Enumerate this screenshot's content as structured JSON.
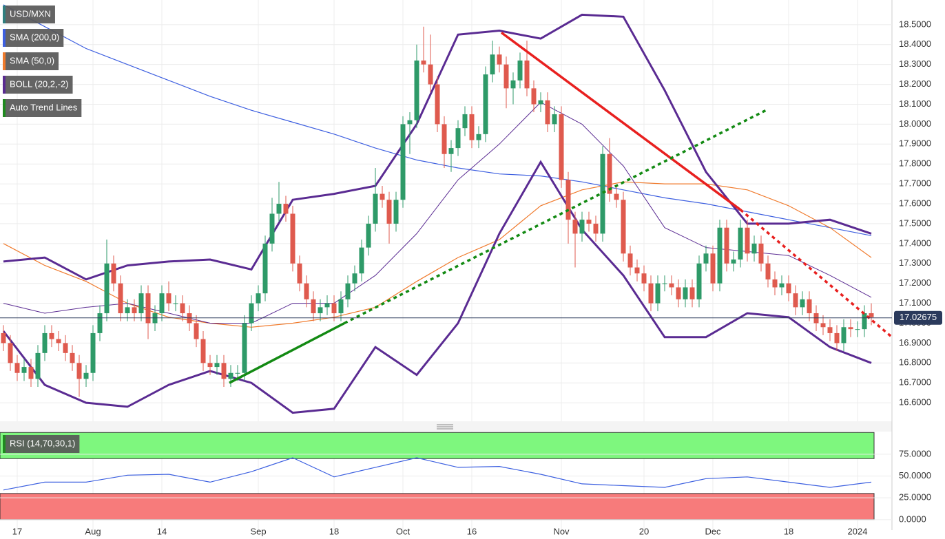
{
  "chart_data": [
    {
      "type": "candlestick",
      "title": "USD/MXN",
      "title_color": "#2f7f7f",
      "up_color": "#2e9a68",
      "down_color": "#df5a4e",
      "xlim": [
        -0.5,
        129
      ],
      "ylim": [
        16.507,
        18.624
      ],
      "xticks": [
        {
          "value": 2,
          "label": "17"
        },
        {
          "value": 13,
          "label": "Aug"
        },
        {
          "value": 23,
          "label": "14"
        },
        {
          "value": 37,
          "label": "Sep"
        },
        {
          "value": 48,
          "label": "18"
        },
        {
          "value": 58,
          "label": "Oct"
        },
        {
          "value": 68,
          "label": "16"
        },
        {
          "value": 81,
          "label": "Nov"
        },
        {
          "value": 93,
          "label": "20"
        },
        {
          "value": 103,
          "label": "Dec"
        },
        {
          "value": 114,
          "label": "18"
        },
        {
          "value": 124,
          "label": "2024"
        }
      ],
      "yticks": [
        {
          "value": 16.6,
          "label": "16.6000"
        },
        {
          "value": 16.7,
          "label": "16.7000"
        },
        {
          "value": 16.8,
          "label": "16.8000"
        },
        {
          "value": 16.9,
          "label": "16.9000"
        },
        {
          "value": 17.0,
          "label": "17.0000"
        },
        {
          "value": 17.1,
          "label": "17.1000"
        },
        {
          "value": 17.2,
          "label": "17.2000"
        },
        {
          "value": 17.3,
          "label": "17.3000"
        },
        {
          "value": 17.4,
          "label": "17.4000"
        },
        {
          "value": 17.5,
          "label": "17.5000"
        },
        {
          "value": 17.6,
          "label": "17.6000"
        },
        {
          "value": 17.7,
          "label": "17.7000"
        },
        {
          "value": 17.8,
          "label": "17.8000"
        },
        {
          "value": 17.9,
          "label": "17.9000"
        },
        {
          "value": 18.0,
          "label": "18.0000"
        },
        {
          "value": 18.1,
          "label": "18.1000"
        },
        {
          "value": 18.2,
          "label": "18.2000"
        },
        {
          "value": 18.3,
          "label": "18.3000"
        },
        {
          "value": 18.4,
          "label": "18.4000"
        },
        {
          "value": 18.5,
          "label": "18.5000"
        }
      ],
      "grid": true,
      "last_price": 17.02675,
      "x": [
        0,
        1,
        2,
        3,
        4,
        5,
        6,
        7,
        8,
        9,
        10,
        11,
        12,
        13,
        14,
        15,
        16,
        17,
        18,
        19,
        20,
        21,
        22,
        23,
        24,
        25,
        26,
        27,
        28,
        29,
        30,
        31,
        32,
        33,
        34,
        35,
        36,
        37,
        38,
        39,
        40,
        41,
        42,
        43,
        44,
        45,
        46,
        47,
        48,
        49,
        50,
        51,
        52,
        53,
        54,
        55,
        56,
        57,
        58,
        59,
        60,
        61,
        62,
        63,
        64,
        65,
        66,
        67,
        68,
        69,
        70,
        71,
        72,
        73,
        74,
        75,
        76,
        77,
        78,
        79,
        80,
        81,
        82,
        83,
        84,
        85,
        86,
        87,
        88,
        89,
        90,
        91,
        92,
        93,
        94,
        95,
        96,
        97,
        98,
        99,
        100,
        101,
        102,
        103,
        104,
        105,
        106,
        107,
        108,
        109,
        110,
        111,
        112,
        113,
        114,
        115,
        116,
        117,
        118,
        119,
        120,
        121,
        122,
        123,
        124,
        125,
        126
      ],
      "open": [
        16.95,
        16.9,
        16.8,
        16.75,
        16.78,
        16.72,
        16.85,
        16.95,
        16.92,
        16.9,
        16.85,
        16.8,
        16.72,
        16.75,
        16.95,
        17.05,
        17.3,
        17.2,
        17.05,
        17.08,
        17.05,
        17.15,
        17.0,
        17.05,
        17.15,
        17.1,
        17.1,
        17.05,
        17.0,
        16.92,
        16.8,
        16.78,
        16.8,
        16.72,
        16.75,
        16.75,
        17.0,
        17.1,
        17.15,
        17.4,
        17.55,
        17.6,
        17.55,
        17.3,
        17.2,
        17.12,
        17.05,
        17.08,
        17.1,
        17.05,
        17.12,
        17.2,
        17.25,
        17.38,
        17.5,
        17.65,
        17.62,
        17.5,
        17.62,
        18.0,
        18.02,
        18.32,
        18.3,
        18.2,
        18.0,
        17.85,
        17.88,
        17.98,
        18.05,
        17.92,
        17.95,
        18.25,
        18.35,
        18.3,
        18.18,
        18.22,
        18.32,
        18.18,
        18.1,
        18.12,
        18.0,
        18.05,
        17.72,
        17.52,
        17.45,
        17.52,
        17.5,
        17.45,
        17.85,
        17.65,
        17.62,
        17.35,
        17.28,
        17.25,
        17.2,
        17.1,
        17.2,
        17.2,
        17.18,
        17.12,
        17.18,
        17.12,
        17.3,
        17.35,
        17.2,
        17.48,
        17.3,
        17.32,
        17.48,
        17.35,
        17.4,
        17.3,
        17.22,
        17.18,
        17.2,
        17.15,
        17.08,
        17.12,
        17.05,
        17.0,
        16.98,
        16.95,
        16.9,
        16.98,
        16.97,
        16.97,
        17.05
      ],
      "high": [
        16.99,
        16.94,
        16.84,
        16.82,
        16.82,
        16.89,
        16.99,
        16.99,
        16.96,
        16.94,
        16.89,
        16.84,
        16.79,
        16.99,
        17.09,
        17.42,
        17.34,
        17.24,
        17.12,
        17.12,
        17.19,
        17.19,
        17.09,
        17.19,
        17.21,
        17.14,
        17.14,
        17.09,
        17.04,
        16.96,
        16.84,
        16.84,
        16.84,
        16.79,
        16.79,
        17.04,
        17.14,
        17.19,
        17.44,
        17.63,
        17.71,
        17.64,
        17.59,
        17.34,
        17.24,
        17.16,
        17.12,
        17.14,
        17.14,
        17.16,
        17.24,
        17.29,
        17.42,
        17.54,
        17.78,
        17.69,
        17.66,
        17.66,
        18.04,
        18.06,
        18.4,
        18.49,
        18.45,
        18.24,
        18.04,
        17.92,
        18.02,
        18.09,
        18.09,
        17.99,
        18.29,
        18.42,
        18.39,
        18.34,
        18.26,
        18.36,
        18.42,
        18.22,
        18.16,
        18.16,
        18.09,
        18.09,
        17.76,
        17.56,
        17.56,
        17.56,
        17.54,
        17.89,
        17.93,
        17.69,
        17.66,
        17.39,
        17.32,
        17.29,
        17.24,
        17.24,
        17.24,
        17.24,
        17.22,
        17.22,
        17.22,
        17.34,
        17.39,
        17.39,
        17.52,
        17.52,
        17.36,
        17.52,
        17.52,
        17.44,
        17.44,
        17.34,
        17.26,
        17.24,
        17.24,
        17.19,
        17.16,
        17.16,
        17.09,
        17.04,
        17.02,
        16.99,
        17.02,
        17.02,
        17.01,
        17.09,
        17.1
      ],
      "low": [
        16.86,
        16.76,
        16.71,
        16.71,
        16.68,
        16.68,
        16.81,
        16.88,
        16.86,
        16.81,
        16.76,
        16.63,
        16.68,
        16.71,
        16.91,
        17.01,
        17.16,
        17.01,
        17.01,
        17.01,
        17.01,
        16.92,
        16.96,
        17.01,
        17.06,
        17.06,
        17.01,
        16.96,
        16.88,
        16.76,
        16.74,
        16.74,
        16.68,
        16.68,
        16.71,
        16.71,
        16.96,
        17.06,
        17.11,
        17.36,
        17.51,
        17.51,
        17.26,
        17.16,
        17.08,
        17.01,
        17.01,
        17.04,
        17.01,
        17.01,
        17.08,
        17.16,
        17.21,
        17.34,
        17.46,
        17.58,
        17.4,
        17.46,
        17.58,
        17.85,
        17.98,
        18.26,
        18.16,
        17.96,
        17.78,
        17.76,
        17.84,
        17.94,
        17.88,
        17.88,
        17.91,
        18.21,
        18.26,
        18.08,
        18.1,
        18.18,
        18.14,
        18.06,
        18.06,
        17.96,
        17.96,
        17.68,
        17.4,
        17.28,
        17.41,
        17.46,
        17.41,
        17.41,
        17.61,
        17.58,
        17.31,
        17.24,
        17.21,
        17.16,
        17.06,
        17.06,
        17.16,
        17.14,
        17.08,
        17.08,
        17.08,
        17.08,
        17.26,
        17.16,
        17.16,
        17.26,
        17.26,
        17.28,
        17.31,
        17.31,
        17.26,
        17.18,
        17.14,
        17.14,
        17.11,
        17.04,
        17.04,
        17.01,
        16.96,
        16.94,
        16.91,
        16.86,
        16.86,
        16.93,
        16.93,
        16.93,
        16.99
      ],
      "close": [
        16.9,
        16.8,
        16.75,
        16.78,
        16.72,
        16.85,
        16.95,
        16.92,
        16.9,
        16.85,
        16.8,
        16.72,
        16.75,
        16.95,
        17.05,
        17.3,
        17.2,
        17.05,
        17.08,
        17.05,
        17.15,
        17.0,
        17.05,
        17.15,
        17.1,
        17.1,
        17.05,
        17.0,
        16.92,
        16.8,
        16.78,
        16.8,
        16.72,
        16.75,
        16.75,
        17.0,
        17.1,
        17.15,
        17.4,
        17.55,
        17.6,
        17.55,
        17.3,
        17.2,
        17.12,
        17.05,
        17.08,
        17.1,
        17.05,
        17.12,
        17.2,
        17.25,
        17.38,
        17.5,
        17.65,
        17.62,
        17.5,
        17.62,
        18.0,
        18.02,
        18.32,
        18.3,
        18.2,
        18.0,
        17.85,
        17.88,
        17.98,
        18.05,
        17.92,
        17.95,
        18.25,
        18.35,
        18.3,
        18.18,
        18.22,
        18.32,
        18.18,
        18.1,
        18.12,
        18.0,
        18.05,
        17.72,
        17.52,
        17.45,
        17.52,
        17.5,
        17.45,
        17.85,
        17.65,
        17.62,
        17.35,
        17.28,
        17.25,
        17.2,
        17.1,
        17.2,
        17.2,
        17.18,
        17.12,
        17.18,
        17.12,
        17.3,
        17.35,
        17.2,
        17.48,
        17.3,
        17.32,
        17.48,
        17.35,
        17.4,
        17.3,
        17.22,
        17.18,
        17.2,
        17.15,
        17.08,
        17.12,
        17.05,
        17.0,
        16.98,
        16.95,
        16.9,
        16.98,
        16.97,
        16.97,
        17.05,
        17.03
      ],
      "line_x": [
        0,
        6,
        12,
        18,
        24,
        30,
        36,
        42,
        48,
        54,
        60,
        66,
        72,
        78,
        84,
        90,
        96,
        102,
        108,
        114,
        120,
        126
      ],
      "sma200": {
        "name": "SMA (200,0)",
        "color": "#3d5fe0",
        "values": [
          18.6,
          18.49,
          18.38,
          18.3,
          18.22,
          18.14,
          18.07,
          18.01,
          17.95,
          17.88,
          17.82,
          17.78,
          17.75,
          17.74,
          17.71,
          17.67,
          17.63,
          17.6,
          17.56,
          17.52,
          17.48,
          17.44
        ]
      },
      "sma50": {
        "name": "SMA (50,0)",
        "color": "#f07a2c",
        "values": [
          17.4,
          17.29,
          17.21,
          17.1,
          17.03,
          17.0,
          16.98,
          17.0,
          17.03,
          17.08,
          17.21,
          17.33,
          17.42,
          17.59,
          17.67,
          17.71,
          17.7,
          17.7,
          17.67,
          17.59,
          17.48,
          17.33
        ]
      },
      "boll": {
        "name": "BOLL (20,2,-2)",
        "color": "#5a2b92",
        "upper": [
          17.31,
          17.33,
          17.22,
          17.29,
          17.31,
          17.32,
          17.27,
          17.62,
          17.65,
          17.69,
          18.0,
          18.45,
          18.47,
          18.43,
          18.55,
          18.54,
          18.17,
          17.76,
          17.5,
          17.5,
          17.52,
          17.45
        ],
        "middle": [
          17.1,
          17.05,
          17.08,
          17.1,
          17.05,
          17.0,
          17.0,
          17.1,
          17.1,
          17.24,
          17.45,
          17.72,
          17.9,
          18.11,
          18.0,
          17.79,
          17.48,
          17.38,
          17.36,
          17.34,
          17.24,
          17.13
        ],
        "lower": [
          16.96,
          16.69,
          16.6,
          16.58,
          16.69,
          16.76,
          16.7,
          16.55,
          16.57,
          16.88,
          16.74,
          17.0,
          17.45,
          17.81,
          17.47,
          17.24,
          16.93,
          16.93,
          17.05,
          17.03,
          16.88,
          16.8
        ]
      },
      "trend_lines": {
        "name": "Auto Trend Lines",
        "color": "#1f8a1f",
        "lines": [
          {
            "color": "#e8201f",
            "dashed": false,
            "x": [
              72.3,
              107
            ],
            "values": [
              18.46,
              17.57
            ]
          },
          {
            "color": "#e8201f",
            "dashed": true,
            "x": [
              107,
              129
            ],
            "values": [
              17.57,
              16.93
            ]
          },
          {
            "color": "#138a13",
            "dashed": false,
            "x": [
              32.8,
              49.5
            ],
            "values": [
              16.7,
              17.0
            ]
          },
          {
            "color": "#138a13",
            "dashed": true,
            "x": [
              49.5,
              110.7
            ],
            "values": [
              17.0,
              18.07
            ]
          }
        ]
      }
    },
    {
      "type": "line",
      "title": "RSI (14,70,30,1)",
      "color": "#3b5fe0",
      "title_color": "#1f8a1f",
      "ylim": [
        -12,
        101
      ],
      "yticks": [
        {
          "value": 0,
          "label": "0.0000"
        },
        {
          "value": 25,
          "label": "25.0000"
        },
        {
          "value": 50,
          "label": "50.0000"
        },
        {
          "value": 75,
          "label": "75.0000"
        }
      ],
      "zones": [
        {
          "from": 70,
          "to": 100,
          "color": "#7ef77e"
        },
        {
          "from": 0,
          "to": 30,
          "color": "#f77b7b"
        }
      ],
      "x": [
        0,
        6,
        12,
        18,
        24,
        30,
        36,
        42,
        48,
        54,
        60,
        66,
        72,
        78,
        84,
        90,
        96,
        102,
        108,
        114,
        120,
        126
      ],
      "values": [
        34,
        43,
        43,
        51,
        52,
        43,
        55,
        71,
        49,
        60,
        71,
        60,
        61,
        52,
        41,
        39,
        37,
        47,
        49,
        43,
        37,
        43
      ]
    }
  ]
}
